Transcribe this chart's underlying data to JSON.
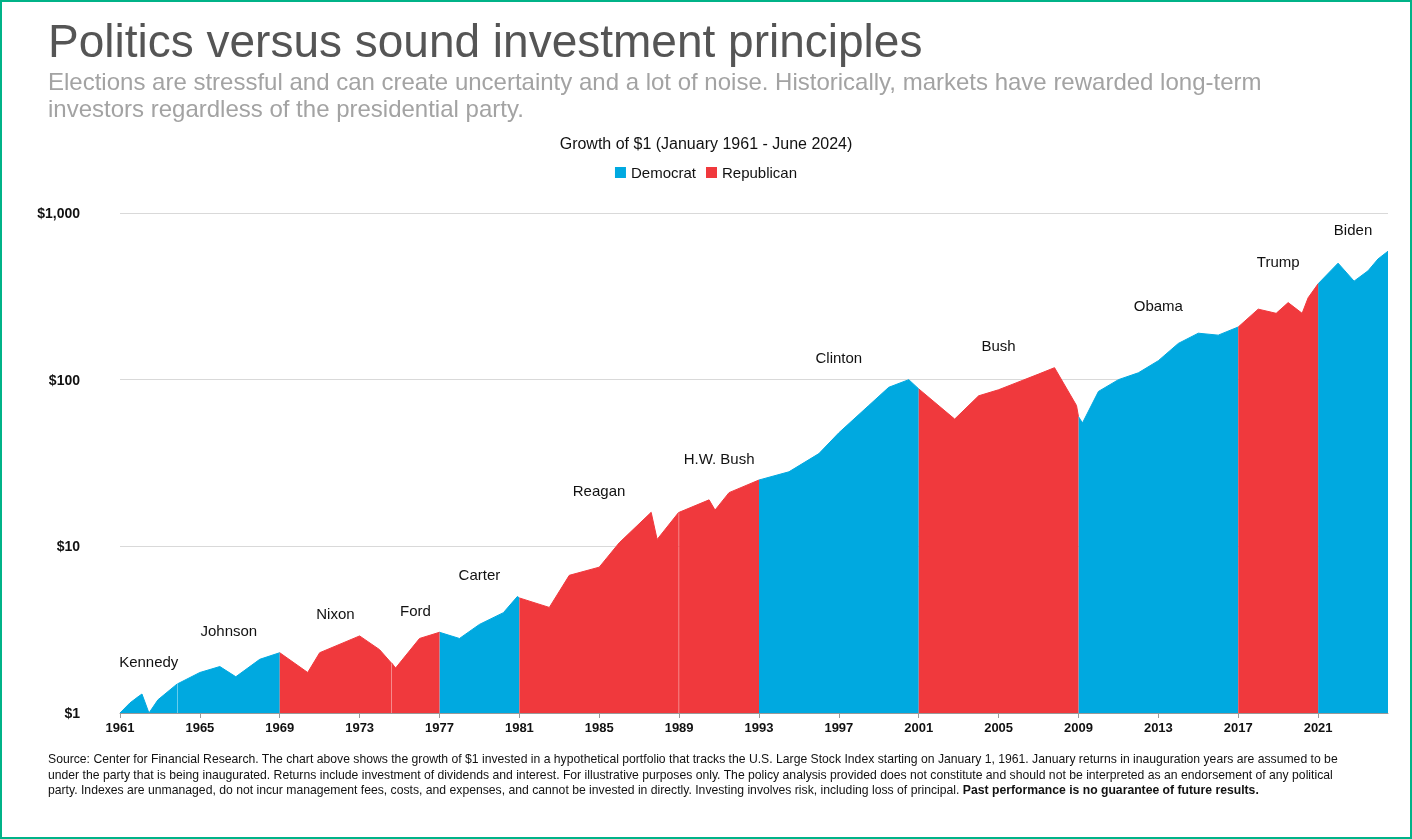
{
  "chart_data": {
    "type": "area",
    "title": "Growth of $1 (January 1961 - June 2024)",
    "log": "y",
    "grid": "y",
    "legend": "top",
    "xlim": [
      1961,
      2024.5
    ],
    "xticks": [
      1961,
      1965,
      1969,
      1973,
      1977,
      1981,
      1985,
      1989,
      1993,
      1997,
      2001,
      2005,
      2009,
      2013,
      2017,
      2021
    ],
    "ylim": [
      1,
      1000
    ],
    "yticks": [
      {
        "value": 1,
        "label": "$1"
      },
      {
        "value": 10,
        "label": "$10"
      },
      {
        "value": 100,
        "label": "$100"
      },
      {
        "value": 1000,
        "label": "$1,000"
      }
    ],
    "series": [
      {
        "name": "Democrat",
        "color": "#00a9e0",
        "x": [
          1961.0,
          1961.5,
          1961.9,
          1962.1,
          1962.45,
          1962.9,
          1963.88,
          1963.89,
          1963.9,
          1965,
          1966.0,
          1966.8,
          1968,
          1969.0,
          1973,
          1977.0,
          1978.0,
          1979,
          1980.2,
          1980.9,
          1981.0,
          1987,
          1993.0,
          1994.5,
          1996,
          1997,
          1998.5,
          1999.5,
          2000.5,
          2001.0,
          2005,
          2009.0,
          2009.2,
          2010,
          2011,
          2012,
          2013,
          2014,
          2015,
          2016,
          2017.0,
          2019,
          2021.0,
          2022.0,
          2022.8,
          2023.5,
          2024.0,
          2024.5
        ],
        "values": [
          1.0,
          1.15,
          1.25,
          1.3,
          1.0,
          1.2,
          1.5,
          null,
          1.5,
          1.75,
          1.9,
          1.65,
          2.1,
          2.3,
          null,
          3.05,
          2.8,
          3.4,
          4.0,
          5.0,
          4.9,
          null,
          25,
          28,
          36,
          48,
          70,
          90,
          100,
          88,
          null,
          60,
          55,
          85,
          100,
          110,
          130,
          165,
          190,
          185,
          207,
          null,
          376,
          500,
          390,
          450,
          530,
          590
        ]
      },
      {
        "name": "Republican",
        "color": "#f0393d",
        "x": [
          1969.0,
          1970.4,
          1971,
          1973.0,
          1974.0,
          1974.58,
          1974.59,
          1974.6,
          1974.8,
          1976,
          1977.0,
          1979,
          1981.0,
          1982.5,
          1983.5,
          1985,
          1986,
          1987.6,
          1987.9,
          1988.98,
          1988.99,
          1989,
          1990.5,
          1990.8,
          1991.5,
          1993.0,
          1997,
          2001.0,
          2002.8,
          2004,
          2005,
          2007,
          2007.8,
          2008.9,
          2009.0,
          2013,
          2017.0,
          2018,
          2018.9,
          2019.5,
          2020.2,
          2020.5,
          2021.0
        ],
        "values": [
          2.3,
          1.75,
          2.3,
          2.9,
          2.4,
          2.0,
          null,
          2.0,
          1.86,
          2.8,
          3.05,
          null,
          4.9,
          4.3,
          6.7,
          7.5,
          10.5,
          16,
          11,
          16,
          null,
          16,
          19,
          16.5,
          21,
          25,
          null,
          88,
          58,
          80,
          87,
          108,
          118,
          70,
          60,
          null,
          207,
          265,
          250,
          290,
          250,
          310,
          376
        ]
      }
    ],
    "annotations": [
      "Kennedy",
      "Johnson",
      "Nixon",
      "Ford",
      "Carter",
      "Reagan",
      "H.W. Bush",
      "Clinton",
      "Bush",
      "Obama",
      "Trump",
      "Biden",
      "Politics versus sound investment principles",
      "Elections are stressful and can create uncertainty and a lot of noise. Historically, markets have rewarded long-term investors regardless of the presidential party.",
      "Source: Center for Financial Research. The chart above shows the growth of $1 invested in a hypothetical portfolio that tracks the U.S. Large Stock Index starting on January 1, 1961. January returns in inauguration years are assumed to be under the party that is being inaugurated. Returns include investment of dividends and interest. For illustrative purposes only. The policy analysis provided does not constitute and should not be interpreted as an endorsement of any political party. Indexes are unmanaged, do not incur management fees, costs, and expenses, and cannot be invested in directly. Investing involves risk, including loss of principal.",
      "Past performance is no guarantee of future results."
    ]
  }
}
